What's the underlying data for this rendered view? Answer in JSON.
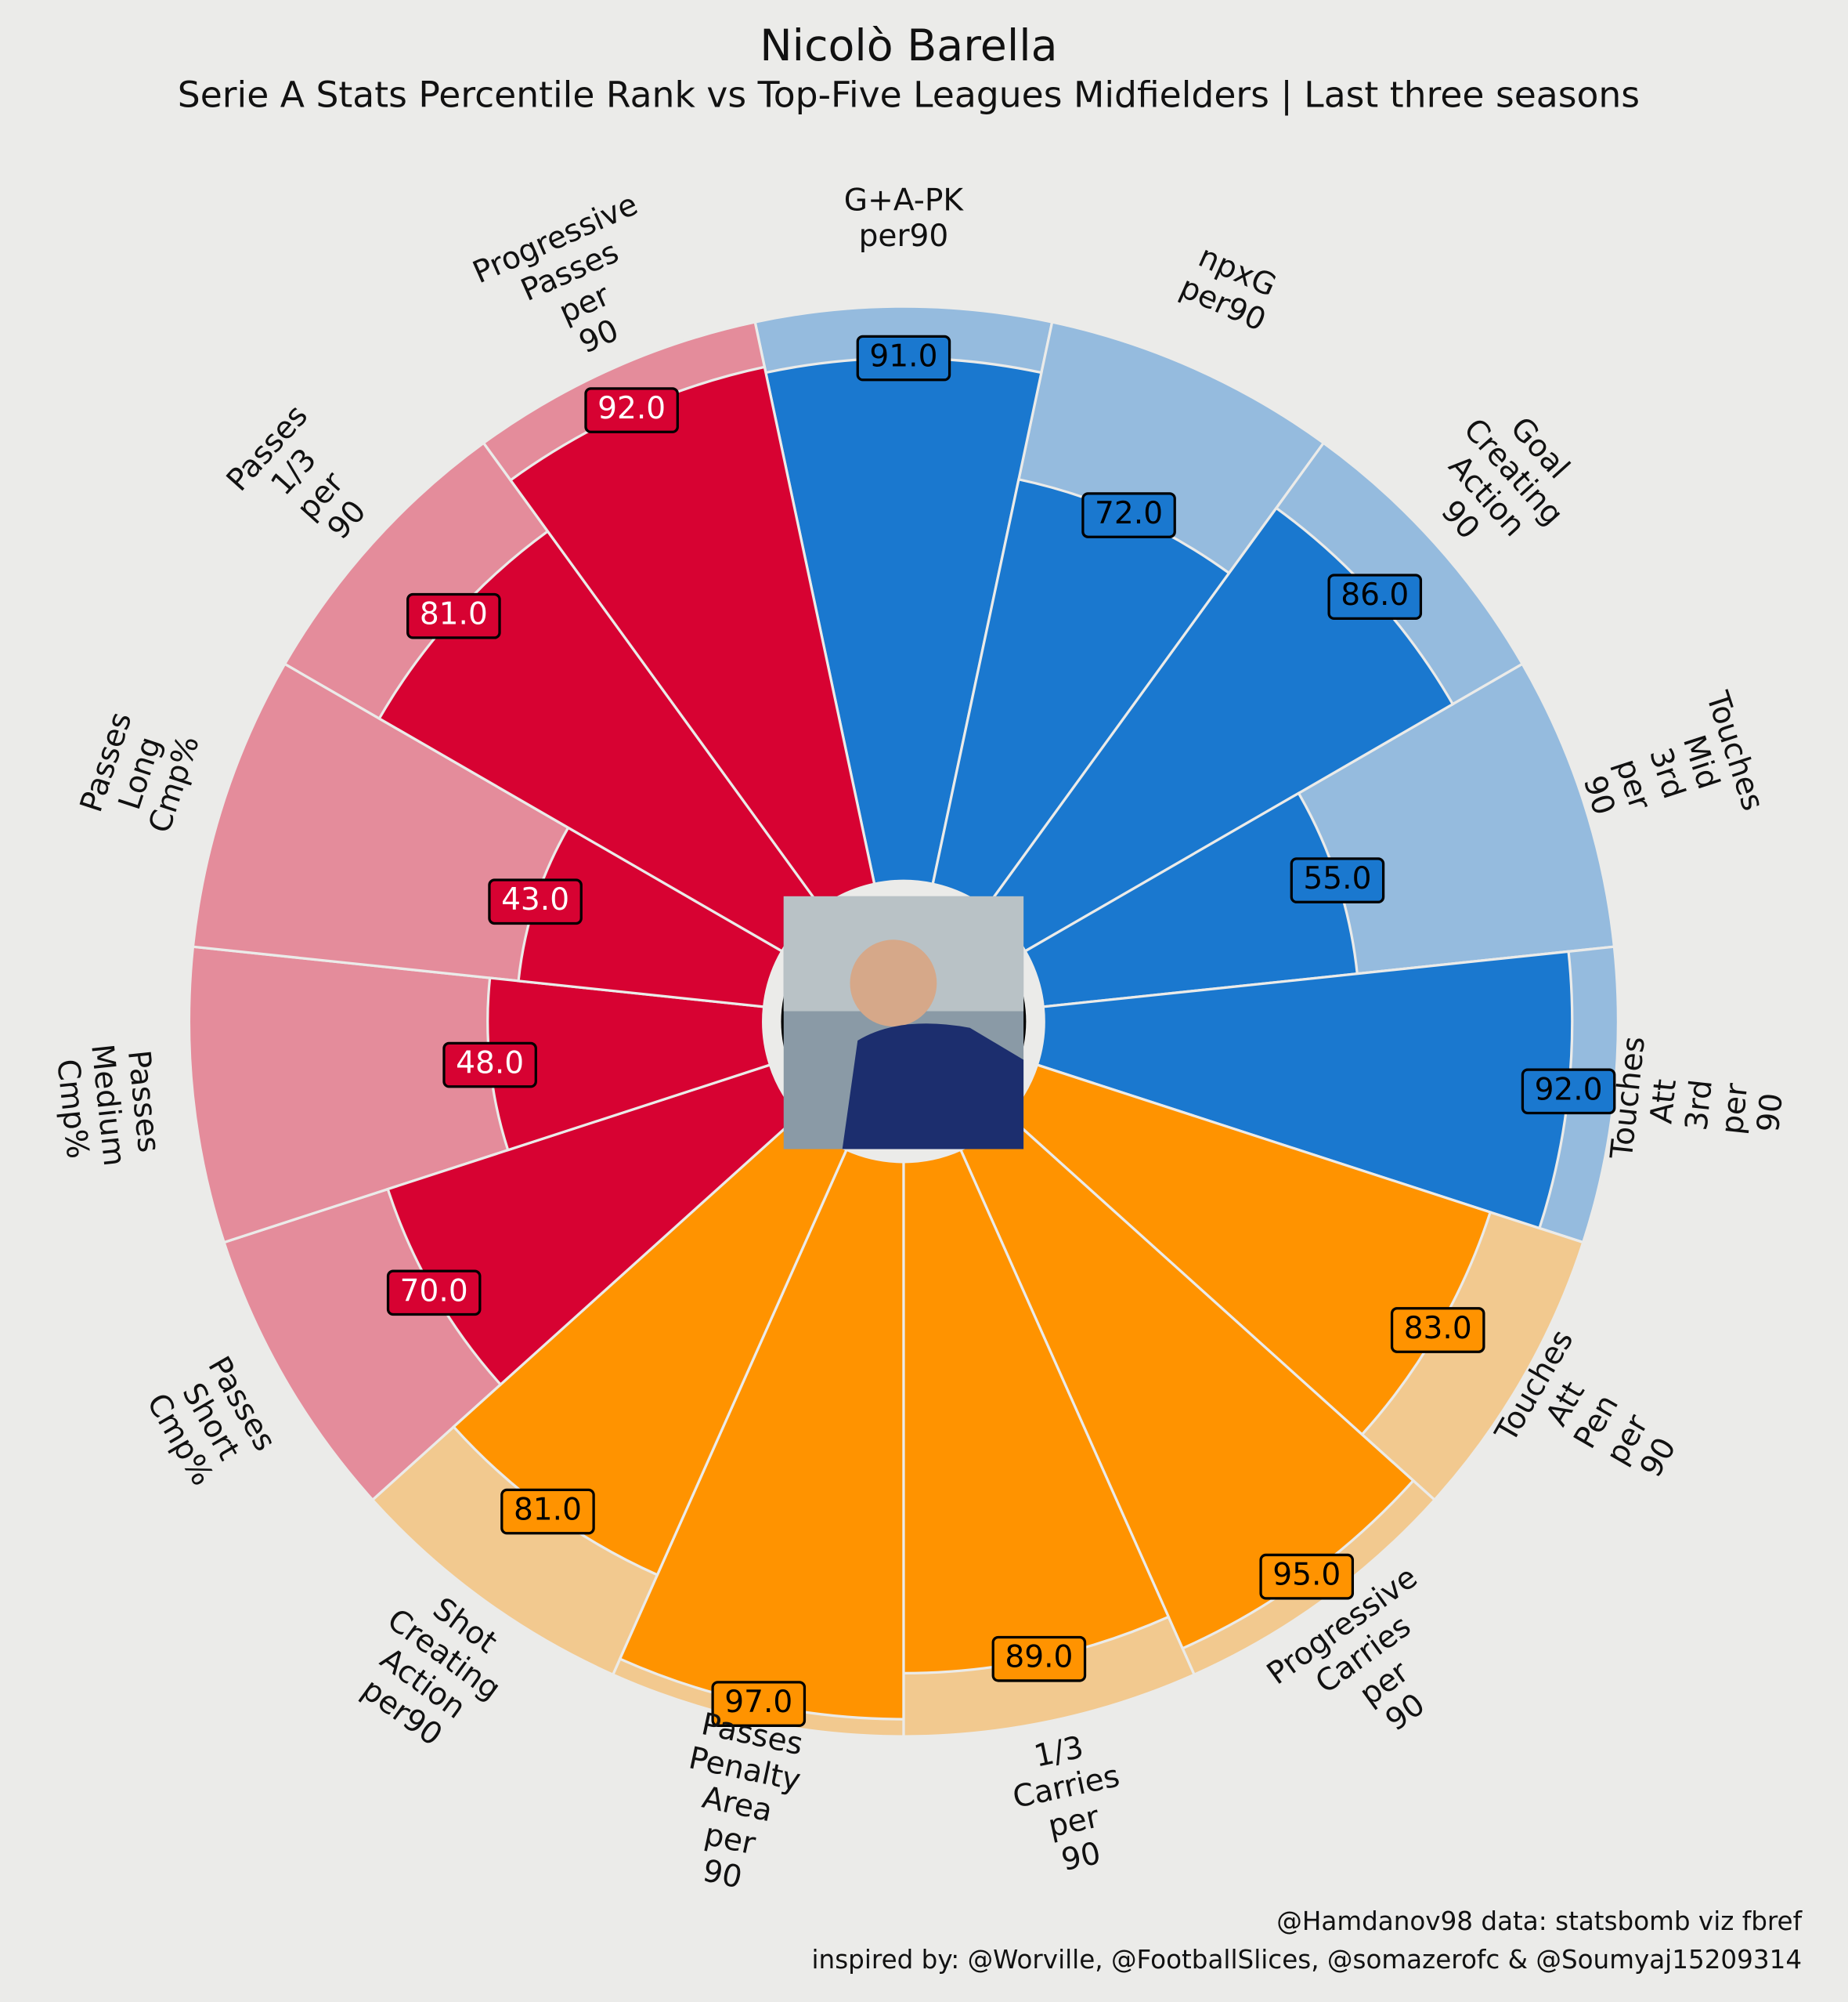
{
  "chart_data": {
    "type": "pizza",
    "title": "Nicolò Barella",
    "subtitle": "Serie A Stats Percentile Rank vs Top-Five Leagues Midfielders | Last three seasons",
    "categories": [
      "G+A-PK\nper90",
      "npxG\nper90",
      "Goal\nCreating\nAction\n90",
      "Touches\nMid\n3rd\nper\n90",
      "Touches\nAtt\n3rd\nper\n90",
      "Touches\nAtt\nPen\nper\n90",
      "Progressive\nCarries\nper\n90",
      "1/3\nCarries\nper\n90",
      "Passes\nPenalty\nArea\nper\n90",
      "Shot\nCreating\nAction\nper90",
      "Passes\nShort\nCmp%",
      "Passes\nMedium\nCmp%",
      "Passes\nLong\nCmp%",
      "Passes\n1/3\nper\n90",
      "Progressive\nPasses\nper\n90"
    ],
    "values": [
      91,
      72,
      86,
      55,
      92,
      83,
      95,
      89,
      97,
      81,
      70,
      48,
      43,
      81,
      92
    ],
    "value_labels": [
      "91.0",
      "72.0",
      "86.0",
      "55.0",
      "92.0",
      "83.0",
      "95.0",
      "89.0",
      "97.0",
      "81.0",
      "70.0",
      "48.0",
      "43.0",
      "81.0",
      "92.0"
    ],
    "colors": [
      "#1a78cf",
      "#1a78cf",
      "#1a78cf",
      "#1a78cf",
      "#1a78cf",
      "#ff9300",
      "#ff9300",
      "#ff9300",
      "#ff9300",
      "#ff9300",
      "#d70232",
      "#d70232",
      "#d70232",
      "#d70232",
      "#d70232"
    ],
    "background_colors": [
      "#95bbde",
      "#95bbde",
      "#95bbde",
      "#95bbde",
      "#95bbde",
      "#f2c98f",
      "#f2c98f",
      "#f2c98f",
      "#f2c98f",
      "#f2c98f",
      "#e48c9b",
      "#e48c9b",
      "#e48c9b",
      "#e48c9b",
      "#e48c9b"
    ],
    "ylim": [
      0,
      100
    ],
    "footer": [
      "@Hamdanov98 data: statsbomb viz fbref",
      "inspired by: @Worville, @FootballSlices, @somazerofc & @Soumyaj15209314"
    ]
  }
}
